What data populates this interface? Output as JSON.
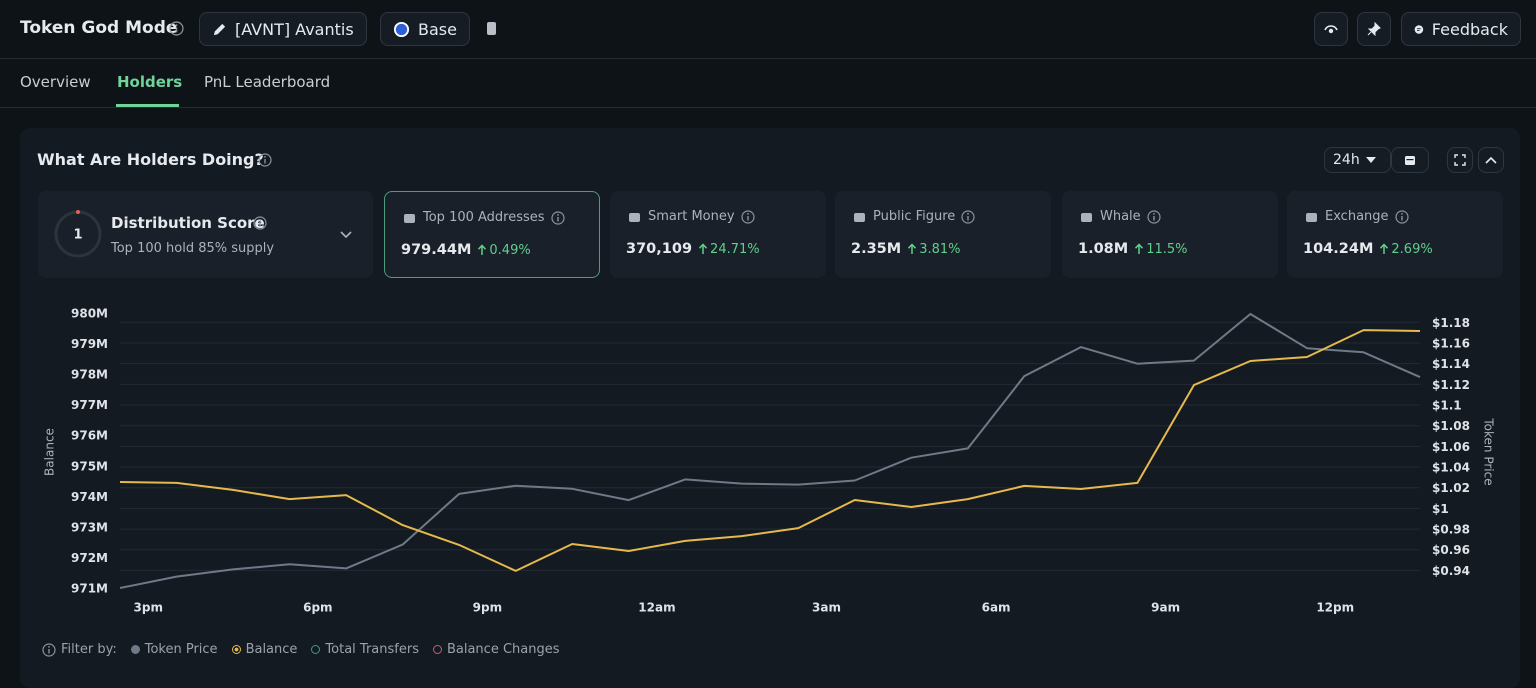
{
  "header": {
    "title": "Token God Mode",
    "token": "[AVNT] Avantis",
    "chain": "Base",
    "feedback": "Feedback"
  },
  "tabs": [
    "Overview",
    "Holders",
    "PnL Leaderboard"
  ],
  "panel": {
    "title": "What Are Holders Doing?",
    "timeframe": "24h"
  },
  "distribution": {
    "score": 1,
    "title": "Distribution Score",
    "subtitle": "Top 100 hold 85% supply"
  },
  "cards": [
    {
      "label": "Top 100 Addresses",
      "value": "979.44M",
      "change": "0.49%"
    },
    {
      "label": "Smart Money",
      "value": "370,109",
      "change": "24.71%"
    },
    {
      "label": "Public Figure",
      "value": "2.35M",
      "change": "3.81%"
    },
    {
      "label": "Whale",
      "value": "1.08M",
      "change": "11.5%"
    },
    {
      "label": "Exchange",
      "value": "104.24M",
      "change": "2.69%"
    }
  ],
  "chart_data": {
    "type": "line",
    "ylabel": "Balance",
    "y2label": "Token Price",
    "x": [
      14.5,
      15.5,
      16.5,
      17.5,
      18.5,
      19.5,
      20.5,
      21.5,
      22.5,
      23.5,
      24.5,
      25.5,
      26.5,
      27.5,
      28.5,
      29.5,
      30.5,
      31.5,
      32.5,
      33.5,
      34.5,
      35.5,
      36.5,
      37.5
    ],
    "xlim": [
      14.5,
      37.5
    ],
    "xticks": [
      {
        "value": 15,
        "label": "3pm"
      },
      {
        "value": 18,
        "label": "6pm"
      },
      {
        "value": 21,
        "label": "9pm"
      },
      {
        "value": 24,
        "label": "12am"
      },
      {
        "value": 27,
        "label": "3am"
      },
      {
        "value": 30,
        "label": "6am"
      },
      {
        "value": 33,
        "label": "9am"
      },
      {
        "value": 36,
        "label": "12pm"
      }
    ],
    "ylim": [
      971,
      980
    ],
    "yticks": [
      {
        "value": 980,
        "label": "980M"
      },
      {
        "value": 979,
        "label": "979M"
      },
      {
        "value": 978,
        "label": "978M"
      },
      {
        "value": 977,
        "label": "977M"
      },
      {
        "value": 976,
        "label": "976M"
      },
      {
        "value": 975,
        "label": "975M"
      },
      {
        "value": 974,
        "label": "974M"
      },
      {
        "value": 973,
        "label": "973M"
      },
      {
        "value": 972,
        "label": "972M"
      },
      {
        "value": 971,
        "label": "971M"
      }
    ],
    "y2lim": [
      0.923,
      1.189
    ],
    "y2ticks": [
      {
        "value": 1.18,
        "label": "$1.18"
      },
      {
        "value": 1.16,
        "label": "$1.16"
      },
      {
        "value": 1.14,
        "label": "$1.14"
      },
      {
        "value": 1.12,
        "label": "$1.12"
      },
      {
        "value": 1.1,
        "label": "$1.1"
      },
      {
        "value": 1.08,
        "label": "$1.08"
      },
      {
        "value": 1.06,
        "label": "$1.06"
      },
      {
        "value": 1.04,
        "label": "$1.04"
      },
      {
        "value": 1.02,
        "label": "$1.02"
      },
      {
        "value": 1,
        "label": "$1"
      },
      {
        "value": 0.98,
        "label": "$0.98"
      },
      {
        "value": 0.96,
        "label": "$0.96"
      },
      {
        "value": 0.94,
        "label": "$0.94"
      }
    ],
    "grid": true,
    "series": [
      {
        "name": "Token Price",
        "color": "#6e7a88",
        "axis": "y2",
        "values": [
          0.923,
          0.934,
          0.941,
          0.946,
          0.942,
          0.965,
          1.014,
          1.022,
          1.019,
          1.008,
          1.028,
          1.024,
          1.023,
          1.027,
          1.049,
          1.058,
          1.128,
          1.156,
          1.14,
          1.143,
          1.188,
          1.155,
          1.151,
          1.127
        ]
      },
      {
        "name": "Balance",
        "color": "#e6b94c",
        "values": [
          974.47,
          974.44,
          974.21,
          973.91,
          974.04,
          973.06,
          972.41,
          971.56,
          972.44,
          972.21,
          972.54,
          972.7,
          972.96,
          973.88,
          973.65,
          973.91,
          974.34,
          974.24,
          974.44,
          977.64,
          978.43,
          978.56,
          979.44,
          979.41
        ]
      }
    ]
  },
  "filters": {
    "label": "Filter by:",
    "others": [
      {
        "name": "Total Transfers",
        "color": "#3e9c7e"
      },
      {
        "name": "Balance Changes",
        "color": "#c0607e"
      }
    ]
  }
}
